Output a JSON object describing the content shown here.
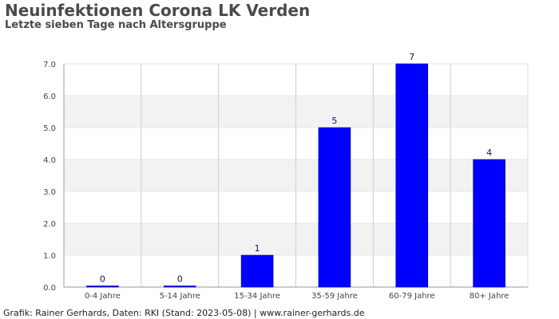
{
  "header": {
    "title": "Neuinfektionen Corona LK Verden",
    "subtitle": "Letzte sieben Tage nach Altersgruppe"
  },
  "footer": {
    "text": "Grafik: Rainer Gerhards, Daten: RKI (Stand: 2023-05-08) | www.rainer-gerhards.de"
  },
  "colors": {
    "bar": "#0000ff",
    "bar_outline": "#00008b",
    "band": "#f2f2f2",
    "grid": "#cccccc",
    "axis": "#999999"
  },
  "chart_data": {
    "type": "bar",
    "categories": [
      "0-4 Jahre",
      "5-14 Jahre",
      "15-34 Jahre",
      "35-59 Jahre",
      "60-79 Jahre",
      "80+ Jahre"
    ],
    "values": [
      0,
      0,
      1,
      5,
      7,
      4
    ],
    "data_labels": [
      "0",
      "0",
      "1",
      "5",
      "7",
      "4"
    ],
    "ylim": [
      0,
      7
    ],
    "yticks": [
      0,
      1,
      2,
      3,
      4,
      5,
      6,
      7
    ],
    "ytick_labels": [
      "0.0",
      "1.0",
      "2.0",
      "3.0",
      "4.0",
      "5.0",
      "6.0",
      "7.0"
    ],
    "grid": true,
    "xlabel": "",
    "ylabel": ""
  }
}
